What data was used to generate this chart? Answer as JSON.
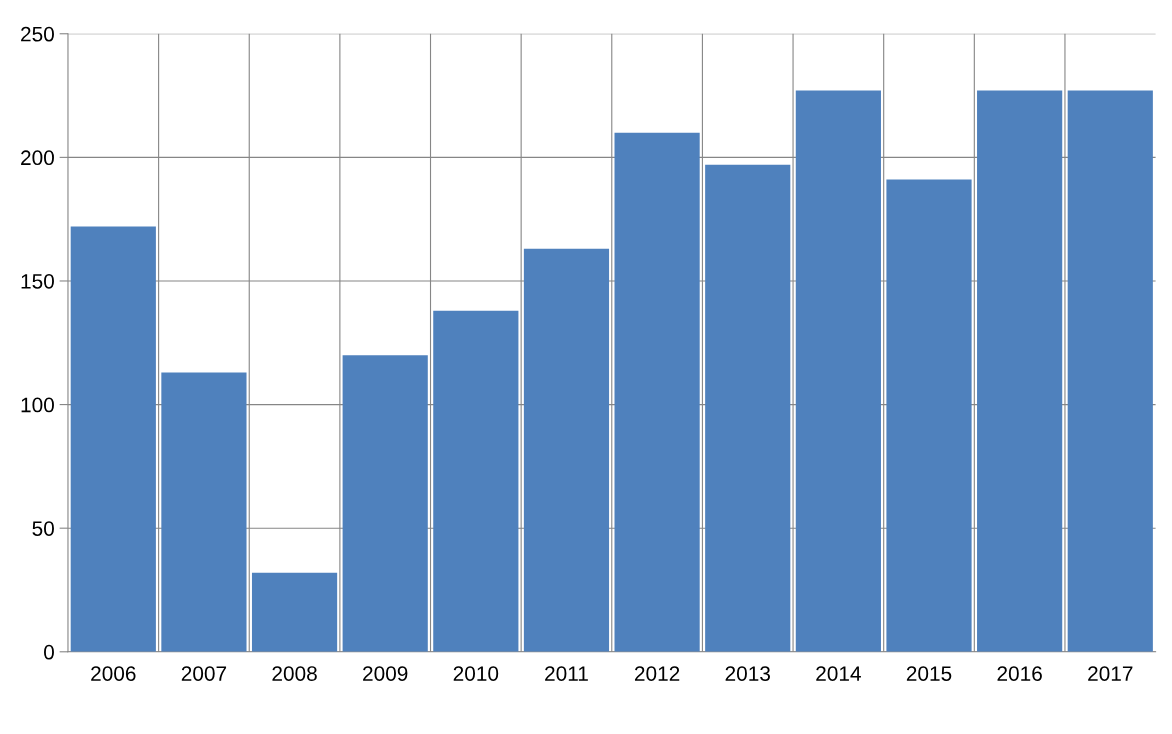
{
  "chart_data": {
    "type": "bar",
    "categories": [
      "2006",
      "2007",
      "2008",
      "2009",
      "2010",
      "2011",
      "2012",
      "2013",
      "2014",
      "2015",
      "2016",
      "2017"
    ],
    "values": [
      172,
      113,
      32,
      120,
      138,
      163,
      210,
      197,
      227,
      191,
      227,
      227
    ],
    "color": "#4f81bd",
    "ylim": [
      0,
      250
    ],
    "yticks": [
      0,
      50,
      100,
      150,
      200,
      250
    ],
    "grid": true,
    "legend": false
  }
}
